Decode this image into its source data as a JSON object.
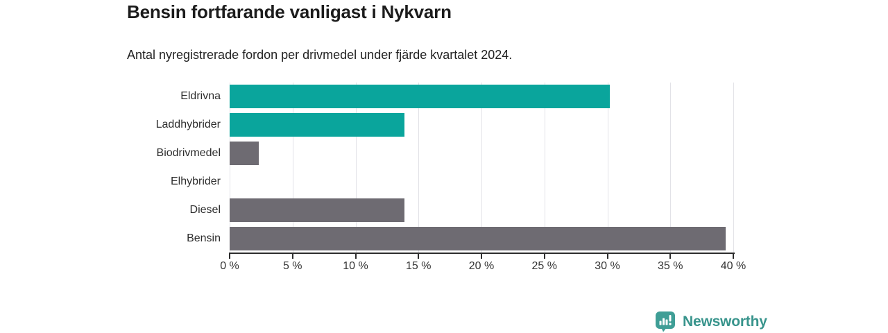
{
  "header": {
    "title": "Bensin fortfarande vanligast i Nykvarn",
    "subtitle": "Antal nyregistrerade fordon per drivmedel under fjärde kvartalet 2024."
  },
  "chart_data": {
    "type": "bar",
    "orientation": "horizontal",
    "title": "Bensin fortfarande vanligast i Nykvarn",
    "subtitle": "Antal nyregistrerade fordon per drivmedel under fjärde kvartalet 2024.",
    "categories": [
      "Eldrivna",
      "Laddhybrider",
      "Biodrivmedel",
      "Elhybrider",
      "Diesel",
      "Bensin"
    ],
    "values": [
      30.2,
      13.9,
      2.3,
      0,
      13.9,
      39.4
    ],
    "bar_colors": [
      "#0aa59c",
      "#0aa59c",
      "#6e6b72",
      "#6e6b72",
      "#6e6b72",
      "#6e6b72"
    ],
    "xlim": [
      0,
      40
    ],
    "x_ticks": [
      0,
      5,
      10,
      15,
      20,
      25,
      30,
      35,
      40
    ],
    "x_tick_suffix": " %",
    "grid": true,
    "legend": "none"
  },
  "footer": {
    "brand": "Newsworthy"
  },
  "colors": {
    "accent_teal": "#0aa59c",
    "neutral_gray": "#6e6b72",
    "grid": "#e2e2e7",
    "axis": "#2d2d2d",
    "brand_teal": "#38948c",
    "logo_bubble": "#3f9e96"
  }
}
